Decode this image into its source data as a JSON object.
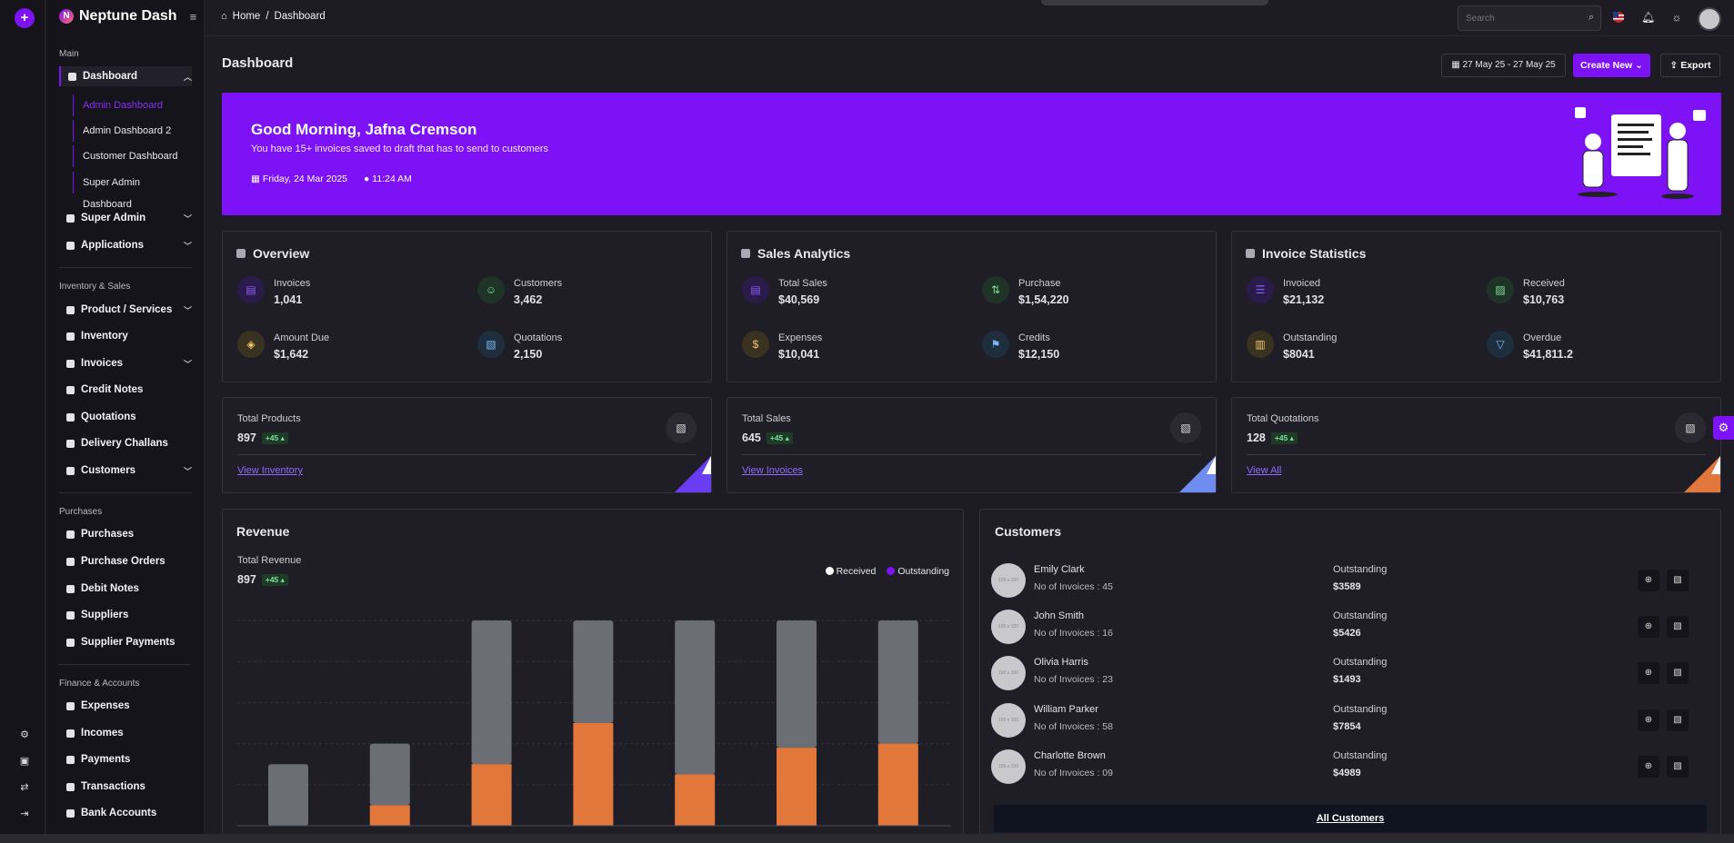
{
  "app": {
    "name": "Neptune Dash",
    "logo_letter": "N"
  },
  "breadcrumb": {
    "home": "Home",
    "sep": "/",
    "current": "Dashboard"
  },
  "topbar": {
    "search_placeholder": "Search"
  },
  "sidebar": {
    "sections": {
      "main": "Main",
      "inventory": "Inventory & Sales",
      "purchases": "Purchases",
      "finance": "Finance & Accounts"
    },
    "dashboard": "Dashboard",
    "dashboard_sub": [
      "Admin Dashboard",
      "Admin Dashboard 2",
      "Customer Dashboard",
      "Super Admin Dashboard"
    ],
    "main_items": [
      "Super Admin",
      "Applications"
    ],
    "inventory_items": [
      "Product / Services",
      "Inventory",
      "Invoices",
      "Credit Notes",
      "Quotations",
      "Delivery Challans",
      "Customers"
    ],
    "purchase_items": [
      "Purchases",
      "Purchase Orders",
      "Debit Notes",
      "Suppliers",
      "Supplier Payments"
    ],
    "finance_items": [
      "Expenses",
      "Incomes",
      "Payments",
      "Transactions",
      "Bank Accounts"
    ]
  },
  "header": {
    "title": "Dashboard",
    "date_range": "27 May 25 - 27 May 25",
    "create_label": "Create New",
    "export_label": "Export"
  },
  "hero": {
    "greeting": "Good Morning, Jafna Cremson",
    "message": "You have 15+ invoices saved to draft that has to send to customers",
    "date": "Friday, 24 Mar 2025",
    "time": "11:24 AM"
  },
  "overview": {
    "title": "Overview",
    "stats": [
      {
        "label": "Invoices",
        "value": "1,041"
      },
      {
        "label": "Customers",
        "value": "3,462"
      },
      {
        "label": "Amount Due",
        "value": "$1,642"
      },
      {
        "label": "Quotations",
        "value": "2,150"
      }
    ]
  },
  "sales_analytics": {
    "title": "Sales Analytics",
    "stats": [
      {
        "label": "Total Sales",
        "value": "$40,569"
      },
      {
        "label": "Purchase",
        "value": "$1,54,220"
      },
      {
        "label": "Expenses",
        "value": "$10,041"
      },
      {
        "label": "Credits",
        "value": "$12,150"
      }
    ]
  },
  "invoice_statistics": {
    "title": "Invoice Statistics",
    "stats": [
      {
        "label": "Invoiced",
        "value": "$21,132"
      },
      {
        "label": "Received",
        "value": "$10,763"
      },
      {
        "label": "Outstanding",
        "value": "$8041"
      },
      {
        "label": "Overdue",
        "value": "$41,811.2"
      }
    ]
  },
  "mini_cards": [
    {
      "label": "Total Products",
      "value": "897",
      "badge": "+45 ▴",
      "link": "View Inventory"
    },
    {
      "label": "Total Sales",
      "value": "645",
      "badge": "+45 ▴",
      "link": "View Invoices"
    },
    {
      "label": "Total Quotations",
      "value": "128",
      "badge": "+45 ▴",
      "link": "View All"
    }
  ],
  "revenue": {
    "title": "Revenue",
    "total_label": "Total Revenue",
    "total_value": "897",
    "badge": "+45 ▴",
    "legend": {
      "received": "Received",
      "outstanding": "Outstanding"
    }
  },
  "colors": {
    "accent": "#7c12f5",
    "received": "#6b6e75",
    "outstanding": "#e2773c"
  },
  "chart_data": {
    "type": "bar",
    "stacked": true,
    "series": [
      {
        "name": "Outstanding",
        "values": [
          0,
          10,
          30,
          50,
          25,
          38,
          40
        ]
      },
      {
        "name": "Received",
        "values": [
          30,
          30,
          70,
          50,
          75,
          62,
          60
        ]
      }
    ],
    "ylim": [
      0,
      100
    ],
    "grid": true,
    "legend_position": "top-right"
  },
  "customers": {
    "title": "Customers",
    "outstanding_label": "Outstanding",
    "avatar_text": "100 x 100",
    "rows": [
      {
        "name": "Emily Clark",
        "invoices": "No of Invoices : 45",
        "amount": "$3589"
      },
      {
        "name": "John Smith",
        "invoices": "No of Invoices : 16",
        "amount": "$5426"
      },
      {
        "name": "Olivia Harris",
        "invoices": "No of Invoices : 23",
        "amount": "$1493"
      },
      {
        "name": "William Parker",
        "invoices": "No of Invoices : 58",
        "amount": "$7854"
      },
      {
        "name": "Charlotte Brown",
        "invoices": "No of Invoices : 09",
        "amount": "$4989"
      }
    ],
    "all_label": "All Customers"
  }
}
